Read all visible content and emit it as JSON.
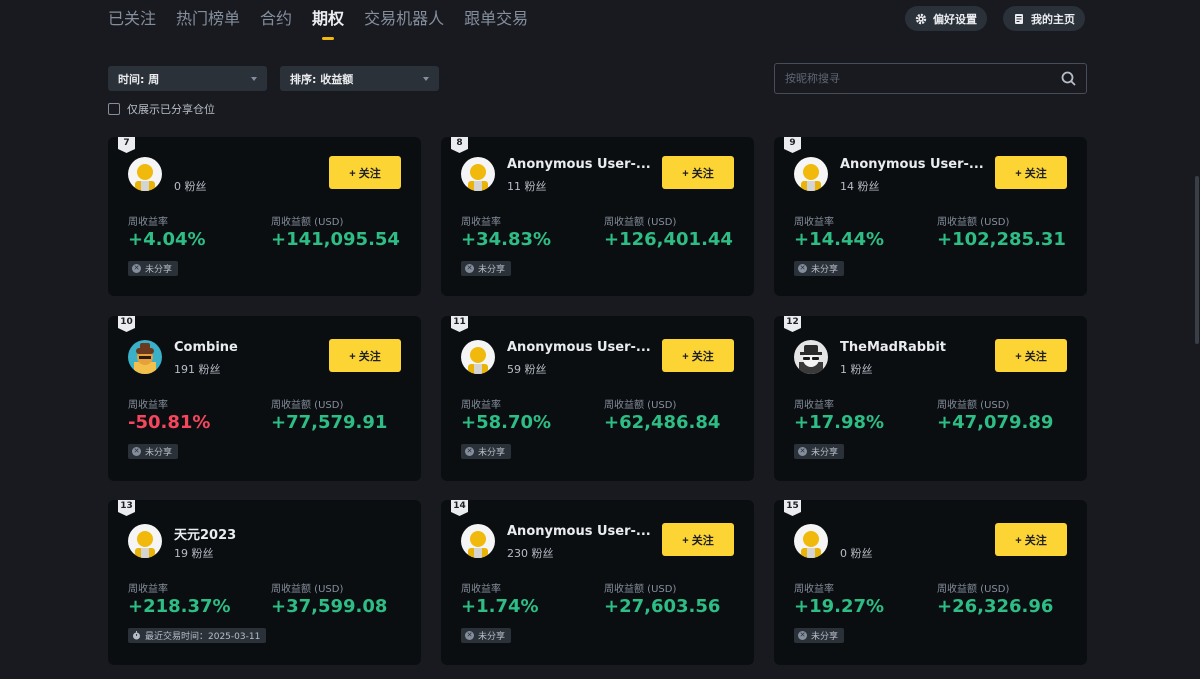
{
  "nav": {
    "tabs": [
      {
        "label": "已关注"
      },
      {
        "label": "热门榜单"
      },
      {
        "label": "合约"
      },
      {
        "label": "期权",
        "active": true
      },
      {
        "label": "交易机器人"
      },
      {
        "label": "跟单交易"
      }
    ],
    "preferences_label": "偏好设置",
    "homepage_label": "我的主页"
  },
  "filters": {
    "time_label": "时间: 周",
    "sort_label": "排序: 收益额",
    "search_placeholder": "按昵称搜寻",
    "show_shared_label": "仅展示已分享仓位"
  },
  "card_labels": {
    "roi_label": "周收益率",
    "pnl_label": "周收益额 (USD)",
    "follow_label": "+ 关注",
    "fans_suffix": "粉丝"
  },
  "cards": [
    {
      "rank": "7",
      "name": "",
      "fans": "0 粉丝",
      "roi": "+4.04%",
      "pnl": "+141,095.54",
      "status": "未分享",
      "avatar": "default"
    },
    {
      "rank": "8",
      "name": "Anonymous User-...",
      "fans": "11 粉丝",
      "roi": "+34.83%",
      "pnl": "+126,401.44",
      "status": "未分享",
      "avatar": "default"
    },
    {
      "rank": "9",
      "name": "Anonymous User-...",
      "fans": "14 粉丝",
      "roi": "+14.44%",
      "pnl": "+102,285.31",
      "status": "未分享",
      "avatar": "default"
    },
    {
      "rank": "10",
      "name": "Combine",
      "fans": "191 粉丝",
      "roi": "-50.81%",
      "pnl": "+77,579.91",
      "status": "未分享",
      "avatar": "hat"
    },
    {
      "rank": "11",
      "name": "Anonymous User-...",
      "fans": "59 粉丝",
      "roi": "+58.70%",
      "pnl": "+62,486.84",
      "status": "未分享",
      "avatar": "default"
    },
    {
      "rank": "12",
      "name": "TheMadRabbit",
      "fans": "1 粉丝",
      "roi": "+17.98%",
      "pnl": "+47,079.89",
      "status": "未分享",
      "avatar": "spy"
    },
    {
      "rank": "13",
      "name": "天元2023",
      "fans": "19 粉丝",
      "roi": "+218.37%",
      "pnl": "+37,599.08",
      "status": "最近交易时间：2025-03-11",
      "status_icon": "clock",
      "avatar": "default",
      "no_follow": true
    },
    {
      "rank": "14",
      "name": "Anonymous User-...",
      "fans": "230 粉丝",
      "roi": "+1.74%",
      "pnl": "+27,603.56",
      "status": "未分享",
      "avatar": "default"
    },
    {
      "rank": "15",
      "name": "",
      "fans": "0 粉丝",
      "roi": "+19.27%",
      "pnl": "+26,326.96",
      "status": "未分享",
      "avatar": "default"
    }
  ],
  "colors": {
    "accent": "#fcd535",
    "positive": "#2ebd85",
    "negative": "#f6465d",
    "card_bg": "#0b0e11",
    "page_bg": "#181a20"
  }
}
